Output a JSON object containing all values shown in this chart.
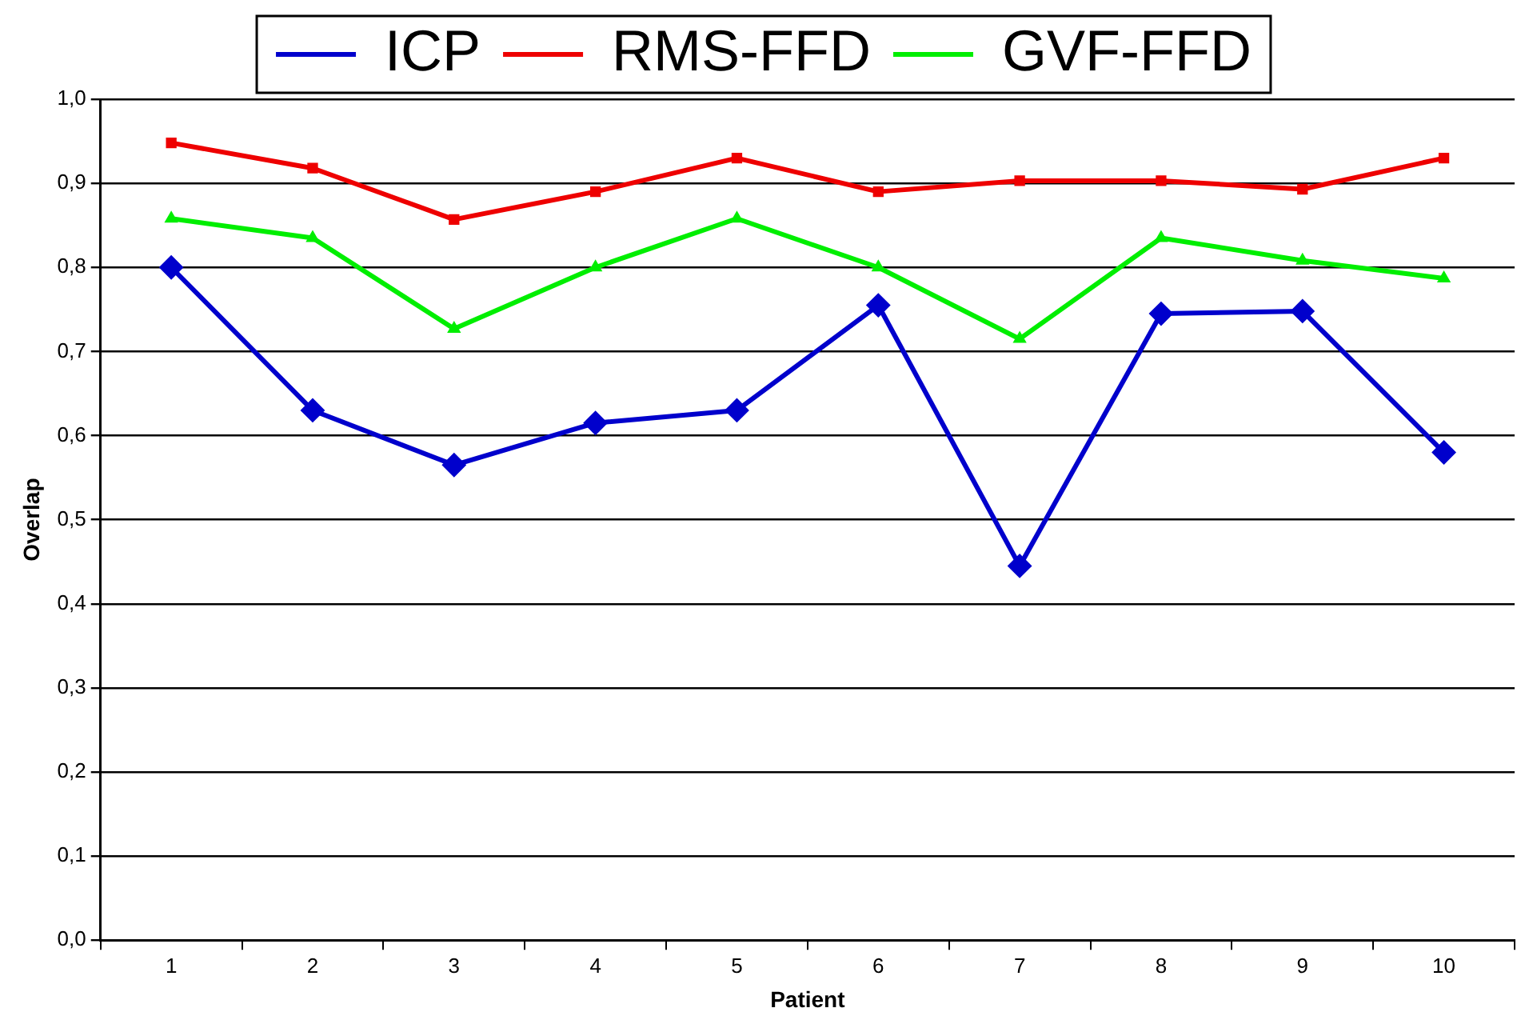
{
  "chart_data": {
    "type": "line",
    "xlabel": "Patient",
    "ylabel": "Overlap",
    "categories": [
      "1",
      "2",
      "3",
      "4",
      "5",
      "6",
      "7",
      "8",
      "9",
      "10"
    ],
    "series": [
      {
        "name": "ICP",
        "color": "#0000cc",
        "marker": "diamond",
        "values": [
          0.8,
          0.63,
          0.565,
          0.615,
          0.63,
          0.755,
          0.445,
          0.745,
          0.748,
          0.58
        ]
      },
      {
        "name": "RMS-FFD",
        "color": "#ee0000",
        "marker": "square",
        "values": [
          0.948,
          0.918,
          0.857,
          0.89,
          0.93,
          0.89,
          0.903,
          0.903,
          0.893,
          0.93
        ]
      },
      {
        "name": "GVF-FFD",
        "color": "#00ee00",
        "marker": "triangle",
        "values": [
          0.858,
          0.835,
          0.727,
          0.8,
          0.858,
          0.8,
          0.715,
          0.835,
          0.808,
          0.787
        ]
      }
    ],
    "ylim": [
      0,
      1
    ],
    "yticks": [
      {
        "value": 0,
        "label": "0,0"
      },
      {
        "value": 0.1,
        "label": "0,1"
      },
      {
        "value": 0.2,
        "label": "0,2"
      },
      {
        "value": 0.3,
        "label": "0,3"
      },
      {
        "value": 0.4,
        "label": "0,4"
      },
      {
        "value": 0.5,
        "label": "0,5"
      },
      {
        "value": 0.6,
        "label": "0,6"
      },
      {
        "value": 0.7,
        "label": "0,7"
      },
      {
        "value": 0.8,
        "label": "0,8"
      },
      {
        "value": 0.9,
        "label": "0,9"
      },
      {
        "value": 1,
        "label": "1,0"
      }
    ],
    "grid": "y",
    "legend": "top",
    "line_style": "solid"
  }
}
